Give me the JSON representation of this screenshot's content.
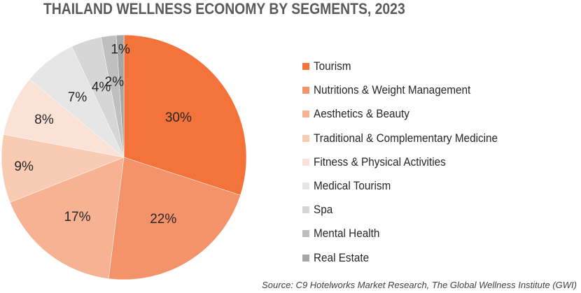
{
  "chart_data": {
    "type": "pie",
    "title": "THAILAND WELLNESS ECONOMY BY SEGMENTS, 2023",
    "categories": [
      "Tourism",
      "Nutritions & Weight Management",
      "Aesthetics & Beauty",
      "Traditional & Complementary Medicine",
      "Fitness & Physical Activities",
      "Medical Tourism",
      "Spa",
      "Mental Health",
      "Real Estate"
    ],
    "values": [
      30,
      22,
      17,
      9,
      8,
      7,
      4,
      2,
      1
    ],
    "labels": [
      "30%",
      "22%",
      "17%",
      "9%",
      "8%",
      "7%",
      "4%",
      "2%",
      "1%"
    ],
    "colors": [
      "#f4733a",
      "#f4926a",
      "#f6b293",
      "#f8cbb2",
      "#fbe2d6",
      "#e6e6e6",
      "#d6d6d6",
      "#bfbfbf",
      "#a6a6a6"
    ],
    "legend_position": "right",
    "source": "Source: C9 Hotelworks Market Research, The Global Wellness Institute (GWI)"
  }
}
